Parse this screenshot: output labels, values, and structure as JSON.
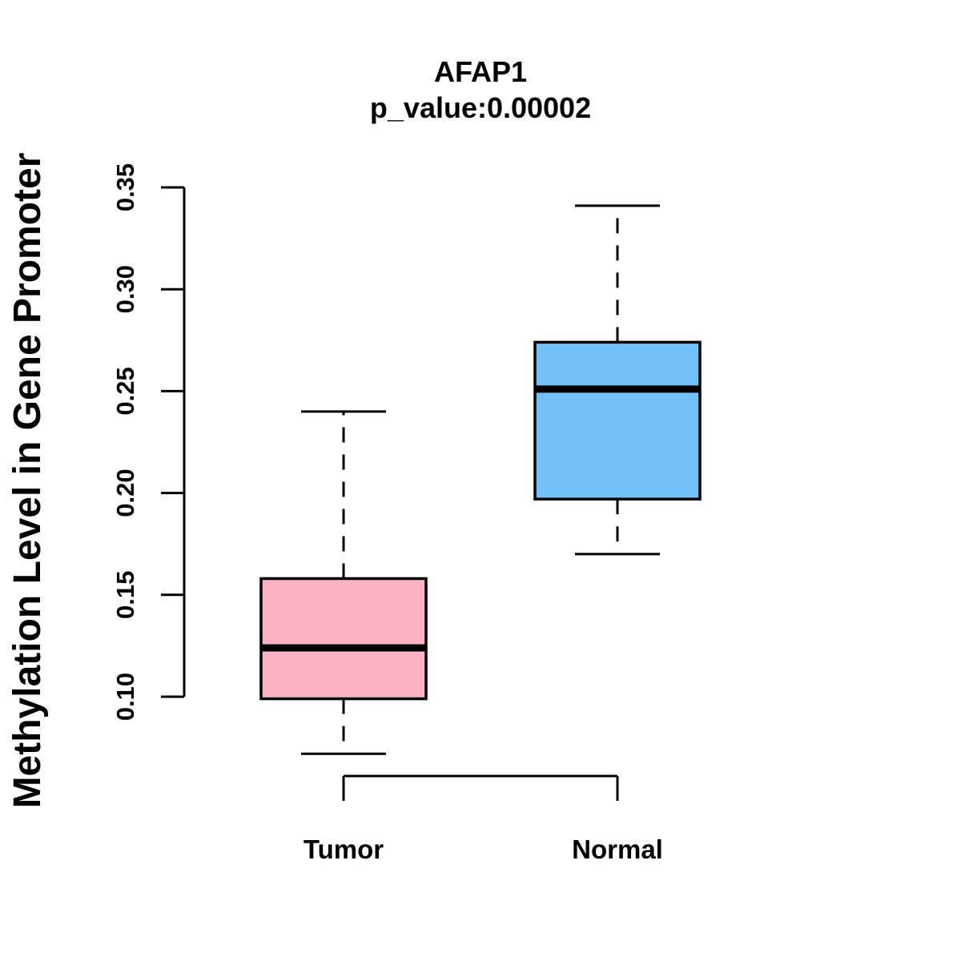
{
  "figure": {
    "background_color": "#ffffff",
    "foreground_color": "#000000"
  },
  "chart_data": {
    "type": "boxplot",
    "title": "AFAP1",
    "subtitle": "p_value:0.00002",
    "ylabel": "Methylation Level in Gene Promoter",
    "xlabel": "",
    "categories": [
      "Tumor",
      "Normal"
    ],
    "yticks": [
      0.1,
      0.15,
      0.2,
      0.25,
      0.3,
      0.35
    ],
    "yaxis_range": [
      0.1,
      0.35
    ],
    "grid": false,
    "legend": "none",
    "orientation": "vertical",
    "series": [
      {
        "name": "Tumor",
        "fill_color": "#FFB1C4",
        "border_color": "#000000",
        "whisker_low": 0.072,
        "q1": 0.099,
        "median": 0.124,
        "q3": 0.158,
        "whisker_high": 0.24
      },
      {
        "name": "Normal",
        "fill_color": "#73BFF7",
        "border_color": "#000000",
        "whisker_low": 0.17,
        "q1": 0.197,
        "median": 0.251,
        "q3": 0.274,
        "whisker_high": 0.341
      }
    ]
  }
}
